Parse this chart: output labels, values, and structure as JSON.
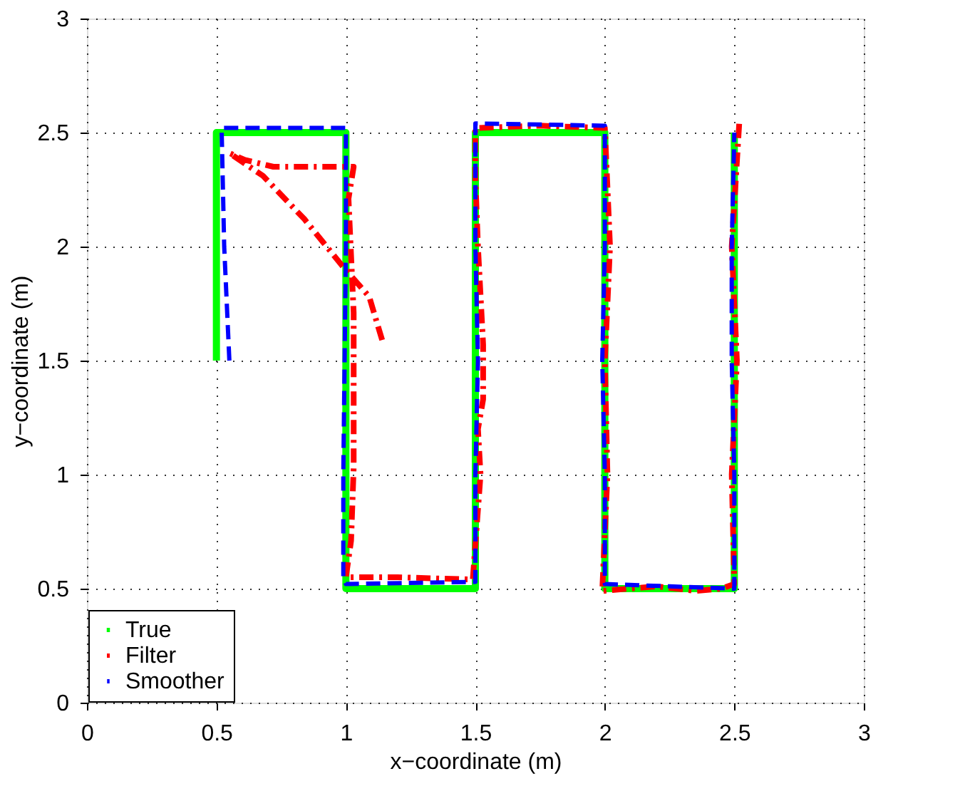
{
  "chart_data": {
    "type": "line",
    "xlabel": "x−coordinate (m)",
    "ylabel": "y−coordinate (m)",
    "xlim": [
      0,
      3
    ],
    "ylim": [
      0,
      3
    ],
    "xticks": [
      0,
      0.5,
      1,
      1.5,
      2,
      2.5,
      3
    ],
    "yticks": [
      0,
      0.5,
      1,
      1.5,
      2,
      2.5,
      3
    ],
    "grid": true,
    "legend": "bottom left",
    "series": [
      {
        "name": "True",
        "color": "#00ff00",
        "line_style": "solid",
        "x": [
          0.5,
          0.5,
          1,
          1,
          1.5,
          1.5,
          2,
          2,
          2.5,
          2.5
        ],
        "values": [
          1.5,
          2.5,
          2.5,
          0.5,
          0.5,
          2.5,
          2.5,
          0.5,
          0.5,
          2.5
        ]
      },
      {
        "name": "Filter",
        "color": "#ff0000",
        "line_style": "dashdot",
        "x": [
          1.14,
          1.09,
          0.99,
          0.84,
          0.68,
          0.55,
          0.61,
          0.72,
          1.0,
          1.03,
          1.01,
          1.03,
          1.03,
          1.03,
          1.03,
          1.02,
          1.0,
          1.2,
          1.49,
          1.52,
          1.51,
          1.53,
          1.53,
          1.51,
          1.5,
          1.5,
          1.75,
          2.0,
          2.02,
          2.0,
          2.01,
          1.99,
          2.2,
          2.35,
          2.45,
          2.5,
          2.49,
          2.51,
          2.49,
          2.52
        ],
        "values": [
          1.59,
          1.78,
          1.91,
          2.12,
          2.31,
          2.41,
          2.38,
          2.35,
          2.35,
          2.35,
          2.21,
          1.71,
          1.43,
          1.33,
          1.03,
          0.71,
          0.55,
          0.55,
          0.54,
          1.0,
          1.2,
          1.33,
          1.57,
          2.0,
          2.3,
          2.52,
          2.53,
          2.52,
          2.0,
          1.5,
          1.0,
          0.49,
          0.51,
          0.49,
          0.5,
          0.52,
          1.0,
          1.5,
          2.0,
          2.56
        ]
      },
      {
        "name": "Smoother",
        "color": "#0000ff",
        "line_style": "dashed",
        "x": [
          0.55,
          0.53,
          0.52,
          1.0,
          1.0,
          0.99,
          0.99,
          1.0,
          1.5,
          1.5,
          1.5,
          1.51,
          1.5,
          1.5,
          2.0,
          2.0,
          1.99,
          2.0,
          2.0,
          2.25,
          2.5,
          2.5,
          2.49,
          2.49,
          2.5
        ],
        "values": [
          1.5,
          2.0,
          2.52,
          2.52,
          2.0,
          1.0,
          0.55,
          0.52,
          0.53,
          0.55,
          1.0,
          1.5,
          2.0,
          2.54,
          2.53,
          2.0,
          1.5,
          1.0,
          0.52,
          0.51,
          0.5,
          1.0,
          1.5,
          2.0,
          2.5
        ]
      }
    ]
  }
}
